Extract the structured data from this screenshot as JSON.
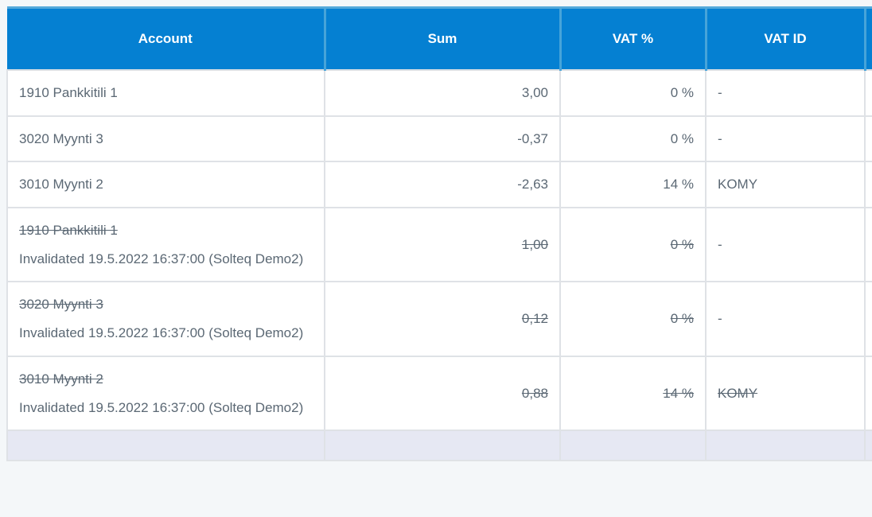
{
  "table": {
    "columns": [
      {
        "key": "account",
        "label": "Account"
      },
      {
        "key": "sum",
        "label": "Sum"
      },
      {
        "key": "vat",
        "label": "VAT %"
      },
      {
        "key": "vat_id",
        "label": "VAT ID"
      },
      {
        "key": "extra",
        "label": ""
      }
    ],
    "rows": [
      {
        "account": "1910 Pankkitili 1",
        "note": "",
        "sum": "3,00",
        "vat": "0 %",
        "vat_id": "-",
        "invalidated": false,
        "vat_id_struck": false
      },
      {
        "account": "3020 Myynti 3",
        "note": "",
        "sum": "-0,37",
        "vat": "0 %",
        "vat_id": "-",
        "invalidated": false,
        "vat_id_struck": false
      },
      {
        "account": "3010 Myynti 2",
        "note": "",
        "sum": "-2,63",
        "vat": "14 %",
        "vat_id": "KOMY",
        "invalidated": false,
        "vat_id_struck": false
      },
      {
        "account": "1910 Pankkitili 1",
        "note": "Invalidated 19.5.2022 16:37:00 (Solteq Demo2)",
        "sum": "1,00",
        "vat": "0 %",
        "vat_id": "-",
        "invalidated": true,
        "vat_id_struck": false
      },
      {
        "account": "3020 Myynti 3",
        "note": "Invalidated 19.5.2022 16:37:00 (Solteq Demo2)",
        "sum": "0,12",
        "vat": "0 %",
        "vat_id": "-",
        "invalidated": true,
        "vat_id_struck": false
      },
      {
        "account": "3010 Myynti 2",
        "note": "Invalidated 19.5.2022 16:37:00 (Solteq Demo2)",
        "sum": "0,88",
        "vat": "14 %",
        "vat_id": "KOMY",
        "invalidated": true,
        "vat_id_struck": true
      }
    ]
  },
  "colors": {
    "header_bg": "#0580d2",
    "header_text": "#ffffff",
    "header_divider": "#47a4d9",
    "body_text": "#5b6874",
    "body_border": "#dfe2e6",
    "page_bg": "#f4f7f9",
    "summary_row_bg": "#e6e8f3"
  }
}
